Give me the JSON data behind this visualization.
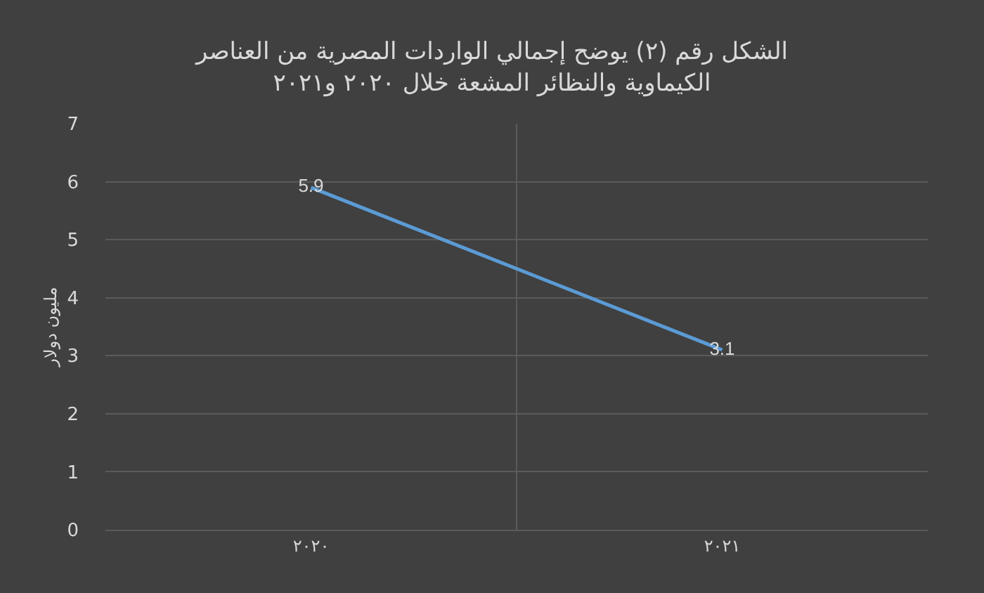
{
  "chart_data": {
    "type": "line",
    "title": "الشكل رقم (٢) يوضح إجمالي الواردات المصرية من العناصر\nالكيماوية والنظائر المشعة خلال ٢٠٢٠ و٢٠٢١",
    "ylabel": "مليون دولار",
    "categories": [
      "٢٠٢٠",
      "٢٠٢١"
    ],
    "series": [
      {
        "color": "#5b9bd5",
        "values": [
          5.9,
          3.1
        ]
      }
    ],
    "ylim": [
      0,
      7
    ],
    "yticks": [
      0,
      1,
      2,
      3,
      4,
      5,
      6,
      7
    ],
    "grid": true,
    "data_labels": true,
    "marker": "none",
    "line_style": "solid"
  }
}
